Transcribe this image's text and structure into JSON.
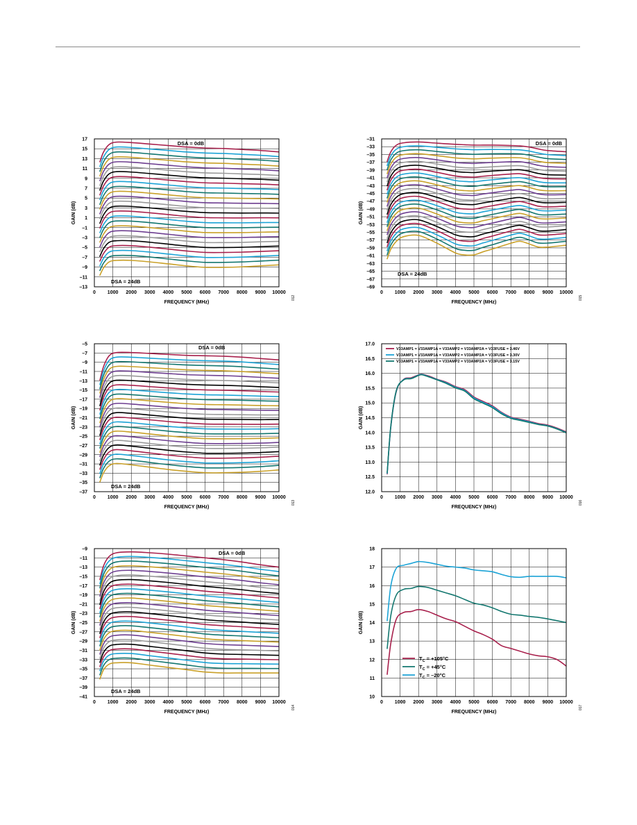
{
  "colors": {
    "red": "#a8204c",
    "cyan": "#1ba3d6",
    "teal": "#13776f",
    "gold": "#c9a028",
    "purple": "#6e3f91",
    "gray": "#9a9a9a",
    "black": "#000000"
  },
  "chart_data": [
    {
      "id": "c1",
      "type": "line",
      "xlabel": "FREQUENCY (MHz)",
      "ylabel": "GAIN (dB)",
      "xlim": [
        0,
        10000
      ],
      "ylim": [
        -13,
        17
      ],
      "xticks": [
        "0",
        "1000",
        "2000",
        "3000",
        "4000",
        "5000",
        "6000",
        "7000",
        "8000",
        "9000",
        "10000"
      ],
      "yticks": [
        "17",
        "15",
        "13",
        "11",
        "9",
        "7",
        "5",
        "3",
        "1",
        "–1",
        "–3",
        "–5",
        "–7",
        "–9",
        "–11",
        "–13"
      ],
      "annotations": [
        {
          "text": "DSA = 0dB",
          "pos": "top-right"
        },
        {
          "text": "DSA = 24dB",
          "pos": "bottom-left"
        }
      ],
      "fig_id": "012",
      "family": {
        "count": 25,
        "top_start_db": 16.35,
        "step_db": -1.0,
        "x": [
          300,
          500,
          800,
          1200,
          2000,
          3000,
          4000,
          5000,
          6000,
          7000,
          8000,
          9000,
          10000
        ],
        "shape_top": [
          -4.0,
          -2.0,
          -0.5,
          0.0,
          -0.1,
          -0.4,
          -0.7,
          -1.0,
          -1.2,
          -1.3,
          -1.5,
          -1.7,
          -2.0
        ],
        "shape_bottom": [
          -3.0,
          -1.5,
          -0.3,
          0.0,
          0.0,
          -0.3,
          -0.7,
          -1.1,
          -1.4,
          -1.4,
          -1.3,
          -1.1,
          -0.9
        ]
      }
    },
    {
      "id": "c2",
      "type": "line",
      "xlabel": "FREQUENCY (MHz)",
      "ylabel": "GAIN (dB)",
      "xlim": [
        0,
        10000
      ],
      "ylim": [
        -69,
        -31
      ],
      "xticks": [
        "0",
        "1000",
        "2000",
        "3000",
        "4000",
        "5000",
        "6000",
        "7000",
        "8000",
        "9000",
        "10000"
      ],
      "yticks": [
        "–31",
        "–33",
        "–35",
        "–37",
        "–39",
        "–41",
        "–43",
        "–45",
        "–47",
        "–49",
        "–51",
        "–53",
        "–55",
        "–57",
        "–59",
        "–61",
        "–63",
        "–65",
        "–67",
        "–69"
      ],
      "annotations": [
        {
          "text": "DSA = 0dB",
          "pos": "top-right"
        },
        {
          "text": "DSA = 24dB",
          "pos": "bottom-left"
        }
      ],
      "fig_id": "015",
      "family": {
        "count": 25,
        "top_start_db": -31.8,
        "step_db": -1.0,
        "x": [
          300,
          500,
          800,
          1200,
          2000,
          3000,
          4000,
          4500,
          5000,
          5500,
          6000,
          7000,
          7500,
          8000,
          8500,
          9000,
          10000
        ],
        "shape_top": [
          -5.0,
          -2.5,
          -0.8,
          -0.2,
          0.0,
          -0.3,
          -0.6,
          -0.7,
          -0.8,
          -0.8,
          -0.8,
          -0.9,
          -1.0,
          -1.3,
          -1.8,
          -2.2,
          -2.5
        ],
        "shape_bottom": [
          -6.0,
          -3.5,
          -1.5,
          -0.3,
          0.0,
          -2.0,
          -4.5,
          -5.0,
          -5.0,
          -4.2,
          -3.5,
          -2.0,
          -1.5,
          -2.2,
          -3.0,
          -3.0,
          -2.5
        ]
      }
    },
    {
      "id": "c3",
      "type": "line",
      "xlabel": "FREQUENCY (MHz)",
      "ylabel": "GAIN (dB)",
      "xlim": [
        0,
        10000
      ],
      "ylim": [
        -37,
        -5
      ],
      "xticks": [
        "0",
        "1000",
        "2000",
        "3000",
        "4000",
        "5000",
        "6000",
        "7000",
        "8000",
        "9000",
        "10000"
      ],
      "yticks": [
        "–5",
        "–7",
        "–9",
        "–11",
        "–13",
        "–15",
        "–17",
        "–19",
        "–21",
        "–23",
        "–25",
        "–27",
        "–29",
        "–31",
        "–33",
        "–35",
        "–37"
      ],
      "annotations": [
        {
          "text": "DSA = 0dB",
          "pos": "top-right"
        },
        {
          "text": "DSA = 24dB",
          "pos": "bottom-left"
        }
      ],
      "fig_id": "013",
      "family": {
        "count": 25,
        "top_start_db": -6.9,
        "step_db": -1.0,
        "x": [
          300,
          500,
          800,
          1200,
          2000,
          3000,
          4000,
          5000,
          6000,
          7000,
          8000,
          9000,
          10000
        ],
        "shape_top": [
          -6.0,
          -3.0,
          -0.7,
          0.0,
          0.0,
          -0.2,
          -0.4,
          -0.6,
          -0.7,
          -0.8,
          -1.0,
          -1.3,
          -1.6
        ],
        "shape_bottom": [
          -4.0,
          -2.0,
          -0.5,
          0.0,
          -0.3,
          -0.8,
          -1.3,
          -1.7,
          -2.0,
          -2.0,
          -1.9,
          -1.7,
          -1.4
        ]
      }
    },
    {
      "id": "c4",
      "type": "line",
      "xlabel": "FREQUENCY (MHz)",
      "ylabel": "GAIN (dB)",
      "xlim": [
        0,
        10000
      ],
      "ylim": [
        12.0,
        17.0
      ],
      "xticks": [
        "0",
        "1000",
        "2000",
        "3000",
        "4000",
        "5000",
        "6000",
        "7000",
        "8000",
        "9000",
        "10000"
      ],
      "yticks": [
        "17.0",
        "16.5",
        "16.0",
        "15.5",
        "15.0",
        "14.5",
        "14.0",
        "13.5",
        "13.0",
        "12.5",
        "12.0"
      ],
      "legend": [
        {
          "text": "V33AMP1 = V33AMP1A = V33AMP2 = V33AMP2A = V33FUSE = 3.46V",
          "color": "#a8204c"
        },
        {
          "text": "V33AMP1 = V33AMP1A = V33AMP2 = V33AMP2A = V33FUSE = 3.30V",
          "color": "#1ba3d6"
        },
        {
          "text": "V33AMP1 = V33AMP1A = V33AMP2 = V33AMP2A = V33FUSE = 3.15V",
          "color": "#13776f"
        }
      ],
      "fig_id": "016",
      "series": [
        {
          "name": "3.46V",
          "color": "#a8204c",
          "x": [
            300,
            500,
            800,
            1200,
            1600,
            2000,
            2200,
            2600,
            3000,
            3500,
            4000,
            4500,
            5000,
            5500,
            6000,
            6500,
            7000,
            7500,
            8000,
            8500,
            9000,
            9500,
            10000
          ],
          "y": [
            12.6,
            14.2,
            15.4,
            15.8,
            15.85,
            15.95,
            15.97,
            15.9,
            15.8,
            15.7,
            15.55,
            15.45,
            15.2,
            15.05,
            14.9,
            14.68,
            14.52,
            14.45,
            14.38,
            14.3,
            14.25,
            14.15,
            14.02
          ]
        },
        {
          "name": "3.30V",
          "color": "#1ba3d6",
          "x": [
            300,
            500,
            800,
            1200,
            1600,
            2000,
            2200,
            2600,
            3000,
            3500,
            4000,
            4500,
            5000,
            5500,
            6000,
            6500,
            7000,
            7500,
            8000,
            8500,
            9000,
            9500,
            10000
          ],
          "y": [
            12.62,
            14.22,
            15.42,
            15.79,
            15.83,
            15.94,
            15.96,
            15.88,
            15.79,
            15.68,
            15.53,
            15.42,
            15.17,
            15.02,
            14.87,
            14.66,
            14.5,
            14.43,
            14.36,
            14.28,
            14.23,
            14.13,
            14.0
          ]
        },
        {
          "name": "3.15V",
          "color": "#13776f",
          "x": [
            300,
            500,
            800,
            1200,
            1600,
            2000,
            2200,
            2600,
            3000,
            3500,
            4000,
            4500,
            5000,
            5500,
            6000,
            6500,
            7000,
            7500,
            8000,
            8500,
            9000,
            9500,
            10000
          ],
          "y": [
            12.64,
            14.24,
            15.43,
            15.78,
            15.82,
            15.93,
            15.95,
            15.87,
            15.78,
            15.66,
            15.51,
            15.4,
            15.14,
            14.99,
            14.84,
            14.63,
            14.48,
            14.41,
            14.34,
            14.27,
            14.22,
            14.12,
            13.99
          ]
        }
      ]
    },
    {
      "id": "c5",
      "type": "line",
      "xlabel": "FREQUENCY (MHz)",
      "ylabel": "GAIN (dB)",
      "xlim": [
        0,
        10000
      ],
      "ylim": [
        -41,
        -9
      ],
      "xticks": [
        "0",
        "1000",
        "2000",
        "3000",
        "4000",
        "5000",
        "6000",
        "7000",
        "8000",
        "9000",
        "10000"
      ],
      "yticks": [
        "–9",
        "–11",
        "–13",
        "–15",
        "–17",
        "–19",
        "–21",
        "–23",
        "–25",
        "–27",
        "–29",
        "–31",
        "–33",
        "–35",
        "–37",
        "–39",
        "–41"
      ],
      "annotations": [
        {
          "text": "DSA = 0dB",
          "pos": "top-right"
        },
        {
          "text": "DSA = 24dB",
          "pos": "bottom-left"
        }
      ],
      "fig_id": "014",
      "family": {
        "count": 25,
        "top_start_db": -9.7,
        "step_db": -1.0,
        "x": [
          300,
          500,
          800,
          1200,
          2000,
          3000,
          4000,
          5000,
          6000,
          7000,
          8000,
          9000,
          10000
        ],
        "shape_top": [
          -6.0,
          -3.0,
          -1.0,
          -0.2,
          0.0,
          -0.2,
          -0.5,
          -0.9,
          -1.3,
          -1.7,
          -2.2,
          -2.8,
          -3.3
        ],
        "shape_bottom": [
          -3.5,
          -1.5,
          -0.3,
          0.0,
          0.0,
          -0.5,
          -1.0,
          -1.5,
          -2.0,
          -2.2,
          -2.2,
          -2.2,
          -2.2
        ]
      }
    },
    {
      "id": "c6",
      "type": "line",
      "xlabel": "FREQUENCY (MHz)",
      "ylabel": "GAIN (dB)",
      "xlim": [
        0,
        10000
      ],
      "ylim": [
        10,
        18
      ],
      "xticks": [
        "0",
        "1000",
        "2000",
        "3000",
        "4000",
        "5000",
        "6000",
        "7000",
        "8000",
        "9000",
        "10000"
      ],
      "yticks": [
        "18",
        "17",
        "16",
        "15",
        "14",
        "13",
        "12",
        "11",
        "10"
      ],
      "legend": [
        {
          "sub_main": "T",
          "sub": "C",
          "text": " = +105°C",
          "color": "#a8204c"
        },
        {
          "sub_main": "T",
          "sub": "C",
          "text": " = +45°C",
          "color": "#13776f"
        },
        {
          "sub_main": "T",
          "sub": "C",
          "text": " = –20°C",
          "color": "#1ba3d6"
        }
      ],
      "fig_id": "017",
      "series": [
        {
          "name": "+105°C",
          "color": "#a8204c",
          "x": [
            300,
            500,
            800,
            1200,
            1600,
            2000,
            2500,
            3000,
            3500,
            4000,
            4500,
            5000,
            5500,
            6000,
            6500,
            7000,
            7500,
            8000,
            8500,
            9000,
            9500,
            10000
          ],
          "y": [
            11.2,
            12.9,
            14.2,
            14.55,
            14.6,
            14.7,
            14.6,
            14.4,
            14.2,
            14.05,
            13.8,
            13.55,
            13.35,
            13.1,
            12.75,
            12.6,
            12.45,
            12.3,
            12.2,
            12.15,
            12.0,
            11.65
          ]
        },
        {
          "name": "+45°C",
          "color": "#13776f",
          "x": [
            300,
            500,
            800,
            1200,
            1600,
            2000,
            2500,
            3000,
            3500,
            4000,
            4500,
            5000,
            5500,
            6000,
            6500,
            7000,
            7500,
            8000,
            8500,
            9000,
            9500,
            10000
          ],
          "y": [
            12.6,
            14.4,
            15.5,
            15.8,
            15.85,
            15.95,
            15.9,
            15.75,
            15.6,
            15.45,
            15.25,
            15.05,
            14.95,
            14.8,
            14.6,
            14.45,
            14.4,
            14.33,
            14.28,
            14.2,
            14.1,
            14.0
          ]
        },
        {
          "name": "–20°C",
          "color": "#1ba3d6",
          "x": [
            300,
            500,
            800,
            1200,
            1600,
            2000,
            2500,
            3000,
            3500,
            4000,
            4500,
            5000,
            5500,
            6000,
            6500,
            7000,
            7500,
            8000,
            8500,
            9000,
            9500,
            10000
          ],
          "y": [
            14.1,
            16.0,
            16.95,
            17.1,
            17.2,
            17.3,
            17.25,
            17.15,
            17.05,
            17.0,
            16.95,
            16.85,
            16.8,
            16.75,
            16.6,
            16.48,
            16.45,
            16.5,
            16.5,
            16.5,
            16.5,
            16.42
          ]
        }
      ]
    }
  ]
}
